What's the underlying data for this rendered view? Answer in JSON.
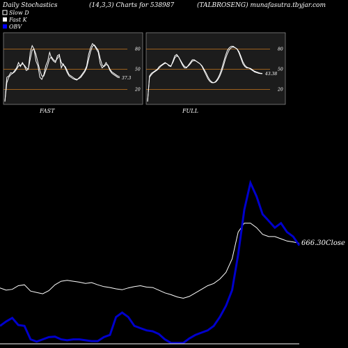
{
  "header": {
    "left": "Daily Stochastics",
    "middle": "(14,3,3) Charts for 538987",
    "right": "(TALBROSENG) munafasutra.tbyjar.com"
  },
  "legend": {
    "items": [
      {
        "label": "Slow  D",
        "color": "#ffffff",
        "marker": "open-square"
      },
      {
        "label": "Fast K",
        "color": "#ffffff",
        "marker": "filled-square"
      },
      {
        "label": "OBV",
        "color": "#0000ff",
        "marker": "filled-square"
      }
    ]
  },
  "colors": {
    "background": "#000000",
    "panel_bg": "#1c1c1c",
    "band_line": "#c8781e",
    "stoch_line": "#ffffff",
    "obv_line": "#0000cc",
    "price_line": "#ffffff"
  },
  "chart_data": [
    {
      "type": "line",
      "panel": "FAST",
      "label": "FAST",
      "ylim": [
        0,
        100
      ],
      "levels": [
        20,
        50,
        80
      ],
      "level_labels": [
        "20",
        "50",
        "80"
      ],
      "end_value_label": "37.3",
      "series": [
        {
          "name": "Fast K",
          "values": [
            2,
            38,
            40,
            45,
            44,
            48,
            52,
            60,
            54,
            60,
            55,
            48,
            50,
            75,
            85,
            80,
            62,
            55,
            38,
            35,
            42,
            55,
            62,
            75,
            66,
            62,
            60,
            70,
            72,
            52,
            58,
            52,
            45,
            40,
            38,
            36,
            35,
            34,
            37,
            40,
            44,
            48,
            55,
            72,
            82,
            88,
            85,
            80,
            75,
            58,
            52,
            55,
            60,
            55,
            48,
            44,
            42,
            40,
            38,
            37.3
          ]
        },
        {
          "name": "Slow  D",
          "values": [
            2,
            30,
            38,
            42,
            44,
            46,
            50,
            55,
            56,
            58,
            56,
            52,
            50,
            65,
            78,
            80,
            72,
            60,
            48,
            40,
            40,
            48,
            56,
            66,
            68,
            64,
            62,
            66,
            70,
            60,
            56,
            54,
            48,
            42,
            40,
            38,
            36,
            35,
            36,
            38,
            42,
            46,
            52,
            64,
            76,
            84,
            86,
            82,
            78,
            66,
            56,
            54,
            57,
            56,
            50,
            46,
            44,
            42,
            40,
            39
          ]
        }
      ]
    },
    {
      "type": "line",
      "panel": "FULL",
      "label": "FULL",
      "ylim": [
        0,
        100
      ],
      "levels": [
        20,
        50,
        80
      ],
      "level_labels": [
        "20",
        "50",
        "80"
      ],
      "end_value_label": "43.38",
      "series": [
        {
          "name": "Fast K",
          "values": [
            2,
            40,
            44,
            46,
            48,
            50,
            54,
            56,
            58,
            60,
            58,
            55,
            54,
            62,
            70,
            72,
            68,
            62,
            56,
            52,
            52,
            56,
            60,
            64,
            64,
            62,
            60,
            58,
            54,
            48,
            42,
            36,
            32,
            30,
            30,
            32,
            36,
            42,
            50,
            60,
            70,
            78,
            82,
            84,
            84,
            82,
            80,
            74,
            66,
            58,
            54,
            52,
            52,
            50,
            48,
            46,
            45,
            44,
            43.5,
            43.38
          ]
        },
        {
          "name": "Slow  D",
          "values": [
            2,
            38,
            42,
            45,
            47,
            49,
            52,
            55,
            57,
            59,
            58,
            56,
            55,
            60,
            67,
            70,
            68,
            63,
            58,
            54,
            53,
            55,
            58,
            62,
            63,
            62,
            60,
            58,
            55,
            50,
            45,
            39,
            34,
            31,
            30,
            31,
            34,
            39,
            46,
            55,
            65,
            73,
            79,
            82,
            83,
            82,
            80,
            76,
            69,
            61,
            56,
            53,
            52,
            51,
            49,
            47,
            46,
            45,
            44,
            43.8
          ]
        }
      ]
    },
    {
      "type": "line",
      "panel": "price-obv",
      "close_label": "666.30Close",
      "series": [
        {
          "name": "Close",
          "values": [
            385,
            380,
            382,
            390,
            392,
            378,
            375,
            372,
            379,
            392,
            400,
            402,
            400,
            398,
            395,
            397,
            392,
            388,
            386,
            383,
            381,
            385,
            388,
            390,
            387,
            386,
            380,
            374,
            370,
            365,
            362,
            366,
            374,
            382,
            390,
            395,
            405,
            420,
            450,
            510,
            530,
            530,
            520,
            505,
            500,
            500,
            495,
            490,
            488,
            485
          ]
        },
        {
          "name": "OBV",
          "values": [
            300,
            310,
            318,
            302,
            300,
            270,
            265,
            270,
            275,
            276,
            270,
            268,
            270,
            270,
            268,
            266,
            266,
            275,
            280,
            320,
            330,
            320,
            300,
            295,
            290,
            288,
            282,
            270,
            262,
            262,
            262,
            272,
            280,
            285,
            290,
            300,
            320,
            345,
            380,
            460,
            560,
            620,
            590,
            550,
            535,
            520,
            530,
            510,
            500,
            480
          ]
        }
      ]
    }
  ]
}
